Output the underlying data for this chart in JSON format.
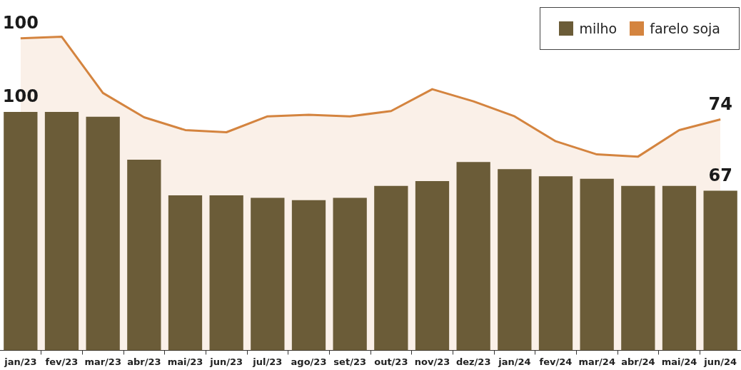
{
  "chart_data": {
    "type": "bar",
    "categories": [
      "jan/23",
      "fev/23",
      "mar/23",
      "abr/23",
      "mai/23",
      "jun/23",
      "jul/23",
      "ago/23",
      "set/23",
      "out/23",
      "nov/23",
      "dez/23",
      "jan/24",
      "fev/24",
      "mar/24",
      "abr/24",
      "mai/24",
      "jun/24"
    ],
    "series": [
      {
        "name": "milho",
        "color": "#6b5c38",
        "values": [
          100,
          100,
          98,
          80,
          65,
          65,
          64,
          63,
          64,
          69,
          71,
          79,
          76,
          73,
          72,
          69,
          69,
          67
        ],
        "value_labels": [
          "100",
          null,
          null,
          null,
          null,
          null,
          null,
          null,
          null,
          null,
          null,
          null,
          null,
          null,
          null,
          null,
          null,
          "67"
        ]
      },
      {
        "name": "farelo soja",
        "type": "area",
        "axis": "y2",
        "color": "#d4843f",
        "values": [
          100,
          100.5,
          82.5,
          74.7,
          70.6,
          69.9,
          75,
          75.5,
          75,
          76.7,
          83.7,
          79.8,
          75,
          67,
          62.8,
          62.1,
          70.6,
          74
        ],
        "value_labels": [
          "100",
          null,
          null,
          null,
          null,
          null,
          null,
          null,
          null,
          null,
          null,
          null,
          null,
          null,
          null,
          null,
          null,
          "74"
        ]
      }
    ],
    "ylim": [
      0,
      144
    ],
    "y2lim": [
      0,
      110
    ],
    "legend": "top right",
    "tick_labels": "x"
  }
}
